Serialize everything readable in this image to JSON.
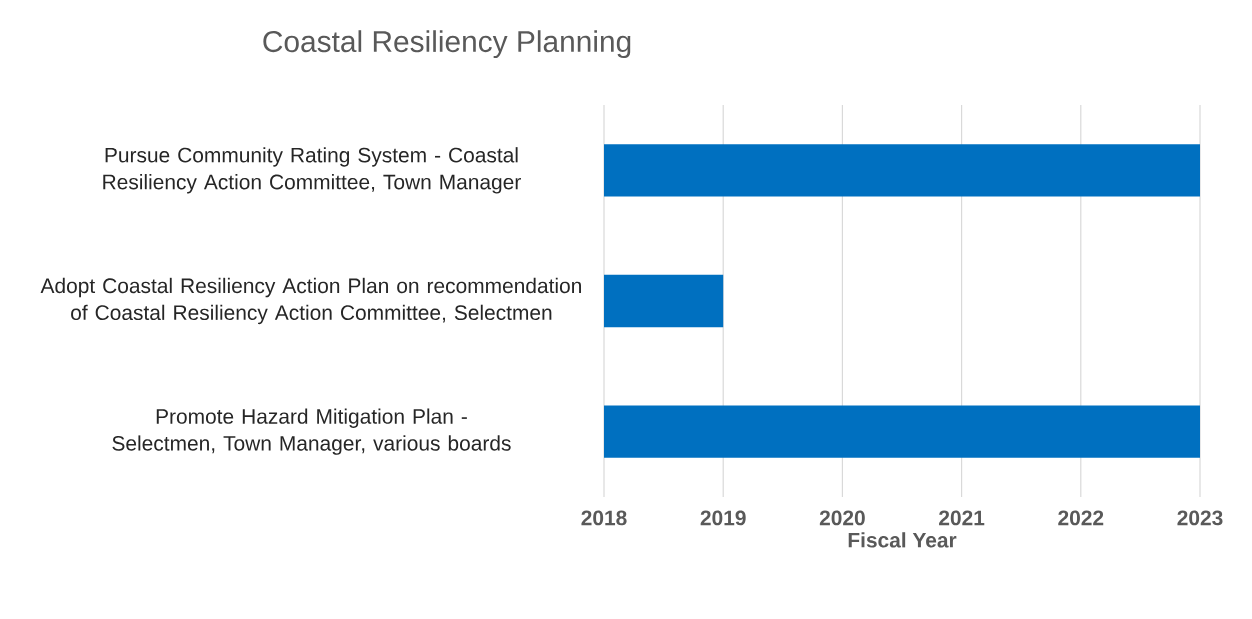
{
  "chart_data": {
    "type": "bar",
    "orientation": "horizontal",
    "title": "Coastal Resiliency Planning",
    "xlabel": "Fiscal Year",
    "categories": [
      "Pursue Community Rating System - Coastal Resiliency Action Committee, Town Manager",
      "Adopt Coastal Resiliency Action Plan on recommendation of Coastal Resiliency Action Committee, Selectmen",
      "Promote Hazard Mitigation Plan - Selectmen, Town Manager, various boards"
    ],
    "base": [
      2018,
      2018,
      2018
    ],
    "values": [
      5,
      1,
      5
    ],
    "color": "#0070c0",
    "xlim": [
      2018,
      2023
    ],
    "xticks": [
      2018,
      2019,
      2020,
      2021,
      2022,
      2023
    ],
    "grid": "x"
  }
}
